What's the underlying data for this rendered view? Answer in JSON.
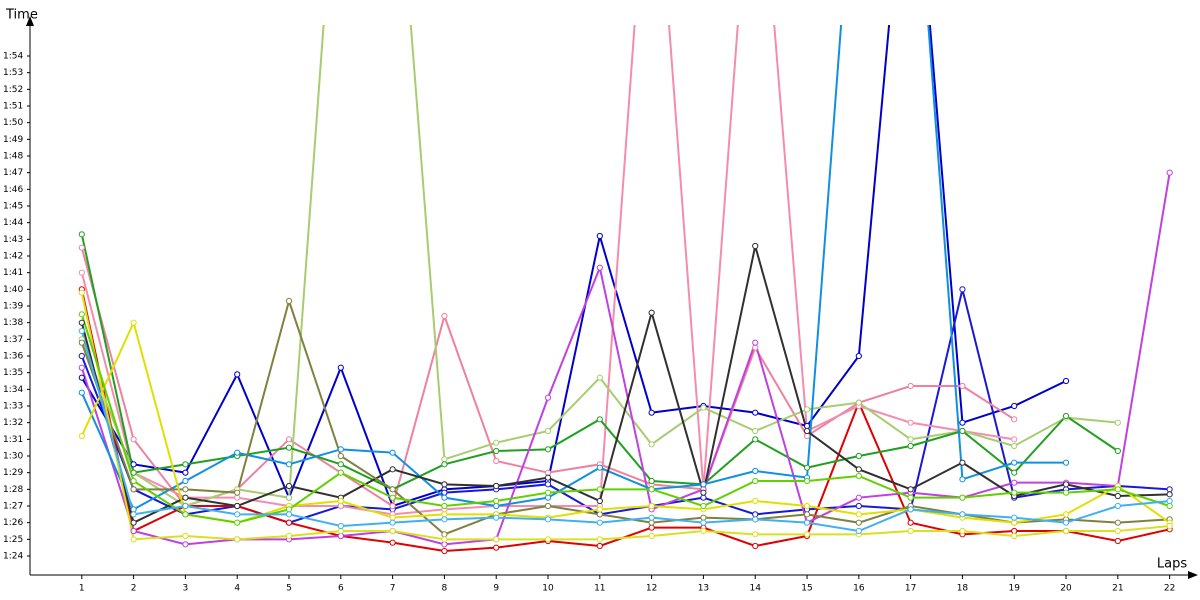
{
  "chart_data": {
    "type": "line",
    "ylabel": "Time",
    "xlabel": "Laps",
    "x": [
      1,
      2,
      3,
      4,
      5,
      6,
      7,
      8,
      9,
      10,
      11,
      12,
      13,
      14,
      15,
      16,
      17,
      18,
      19,
      20,
      21,
      22
    ],
    "xlim": [
      0,
      22.2
    ],
    "xticks": [
      1,
      2,
      3,
      4,
      5,
      6,
      7,
      8,
      9,
      10,
      11,
      12,
      13,
      14,
      15,
      16,
      17,
      18,
      19,
      20,
      21,
      22
    ],
    "ylim": [
      82.86,
      115.86
    ],
    "yticks": [
      {
        "value": 84,
        "label": "1:24"
      },
      {
        "value": 85,
        "label": "1:25"
      },
      {
        "value": 86,
        "label": "1:26"
      },
      {
        "value": 87,
        "label": "1:27"
      },
      {
        "value": 88,
        "label": "1:28"
      },
      {
        "value": 89,
        "label": "1:29"
      },
      {
        "value": 90,
        "label": "1:30"
      },
      {
        "value": 91,
        "label": "1:31"
      },
      {
        "value": 92,
        "label": "1:32"
      },
      {
        "value": 93,
        "label": "1:33"
      },
      {
        "value": 94,
        "label": "1:34"
      },
      {
        "value": 95,
        "label": "1:35"
      },
      {
        "value": 96,
        "label": "1:36"
      },
      {
        "value": 97,
        "label": "1:37"
      },
      {
        "value": 98,
        "label": "1:38"
      },
      {
        "value": 99,
        "label": "1:39"
      },
      {
        "value": 100,
        "label": "1:40"
      },
      {
        "value": 101,
        "label": "1:41"
      },
      {
        "value": 102,
        "label": "1:42"
      },
      {
        "value": 103,
        "label": "1:43"
      },
      {
        "value": 104,
        "label": "1:44"
      },
      {
        "value": 105,
        "label": "1:45"
      },
      {
        "value": 106,
        "label": "1:46"
      },
      {
        "value": 107,
        "label": "1:47"
      },
      {
        "value": 108,
        "label": "1:48"
      },
      {
        "value": 109,
        "label": "1:49"
      },
      {
        "value": 110,
        "label": "1:50"
      },
      {
        "value": 111,
        "label": "1:51"
      },
      {
        "value": 112,
        "label": "1:52"
      },
      {
        "value": 113,
        "label": "1:53"
      },
      {
        "value": 114,
        "label": "1:54"
      }
    ],
    "grid": false,
    "series": [
      {
        "color": "#0000cc",
        "values": [
          94.7,
          89.5,
          89,
          94.9,
          87.5,
          95.3,
          87,
          88,
          88.2,
          88.5,
          103.2,
          92.6,
          93,
          92.6,
          91.8,
          96,
          130,
          92,
          93,
          94.5,
          null,
          null
        ]
      },
      {
        "color": "#1818d8",
        "values": [
          96,
          88,
          86.5,
          87,
          86,
          87,
          86.8,
          87.8,
          88,
          88.3,
          86.5,
          87,
          87.5,
          86.5,
          86.8,
          87,
          86.8,
          100,
          87.5,
          88,
          88.2,
          88
        ]
      },
      {
        "color": "#e00000",
        "values": [
          100,
          85.5,
          87,
          87,
          86,
          85.2,
          84.8,
          84.3,
          84.5,
          84.9,
          84.6,
          85.7,
          85.7,
          84.6,
          85.2,
          93.2,
          86,
          85.3,
          85.5,
          85.5,
          84.9,
          85.6
        ]
      },
      {
        "color": "#f080a0",
        "values": [
          102.5,
          91,
          87,
          88,
          91,
          89,
          87,
          98.4,
          89.7,
          89,
          89.5,
          88.3,
          88,
          96.5,
          91.2,
          93.2,
          94.2,
          94.2,
          92.2,
          null,
          null,
          null
        ]
      },
      {
        "color": "#f48cb0",
        "values": [
          101,
          89,
          87.5,
          87.5,
          87,
          87,
          86.5,
          86.8,
          87,
          87,
          87,
          130,
          88,
          130,
          91.5,
          93,
          92,
          91.5,
          91,
          null,
          null,
          null
        ]
      },
      {
        "color": "#a8cc70",
        "values": [
          97,
          89,
          87,
          88,
          87.5,
          130,
          130,
          89.8,
          90.8,
          91.5,
          94.7,
          90.7,
          92.9,
          91.5,
          92.8,
          93.2,
          91,
          91.5,
          90.6,
          92.3,
          92,
          null
        ]
      },
      {
        "color": "#20a020",
        "values": [
          103.3,
          89,
          89.5,
          90,
          90.5,
          89.5,
          88,
          89.5,
          90.3,
          90.4,
          92.2,
          88.5,
          88.3,
          91,
          89.3,
          90,
          90.6,
          91.5,
          89,
          92.4,
          90.3,
          null
        ]
      },
      {
        "color": "#c040e0",
        "values": [
          95.3,
          85.5,
          84.7,
          85,
          85,
          85.2,
          85.5,
          84.7,
          85,
          93.5,
          101.3,
          86.8,
          88,
          96.8,
          86,
          87.5,
          87.8,
          87.5,
          88.4,
          88.4,
          88.2,
          107
        ]
      },
      {
        "color": "#1090e0",
        "values": [
          93.8,
          86.8,
          88.5,
          90.2,
          89.5,
          90.4,
          90.2,
          87.5,
          87,
          87.5,
          89.3,
          88,
          88.3,
          89.1,
          88.7,
          130,
          130,
          88.6,
          89.6,
          89.6,
          null,
          null
        ]
      },
      {
        "color": "#303030",
        "values": [
          98,
          86,
          87.5,
          87,
          88.2,
          87.5,
          89.2,
          88.3,
          88.2,
          88.7,
          87.3,
          98.6,
          87.8,
          102.6,
          91.5,
          89.2,
          88,
          89.6,
          87.6,
          88.3,
          87.6,
          87.7
        ]
      },
      {
        "color": "#808040",
        "values": [
          96.8,
          88,
          88,
          87.8,
          99.3,
          90,
          88,
          85.3,
          86.5,
          87,
          86.5,
          86,
          86.3,
          86.2,
          86.5,
          86,
          87,
          86.5,
          86,
          86.2,
          86,
          86.2
        ]
      },
      {
        "color": "#e0e000",
        "values": [
          91.2,
          98,
          86.5,
          86,
          87,
          87.3,
          86.3,
          86.5,
          86.5,
          86.3,
          86.8,
          87,
          86.8,
          87.3,
          87,
          86.5,
          86.8,
          86.3,
          86,
          86.5,
          88.2,
          86
        ]
      },
      {
        "color": "#d8e020",
        "values": [
          99.8,
          85,
          85.2,
          85,
          85.2,
          85.5,
          85.5,
          85,
          85,
          85,
          85,
          85.2,
          85.5,
          85.3,
          85.3,
          85.3,
          85.5,
          85.5,
          85.2,
          85.5,
          85.5,
          85.8
        ]
      },
      {
        "color": "#60d000",
        "values": [
          98.5,
          88.5,
          86.5,
          86,
          86.8,
          89,
          87.5,
          87,
          87.3,
          87.8,
          88,
          88,
          87,
          88.5,
          88.5,
          88.8,
          87.5,
          87.5,
          87.8,
          87.8,
          88,
          87
        ]
      },
      {
        "color": "#40b0f0",
        "values": [
          97.5,
          86.5,
          87,
          86.5,
          86.5,
          85.8,
          86,
          86.2,
          86.3,
          86.2,
          86,
          86.3,
          86,
          86.2,
          86,
          85.5,
          86.8,
          86.5,
          86.3,
          86,
          87,
          87.3
        ]
      }
    ]
  }
}
